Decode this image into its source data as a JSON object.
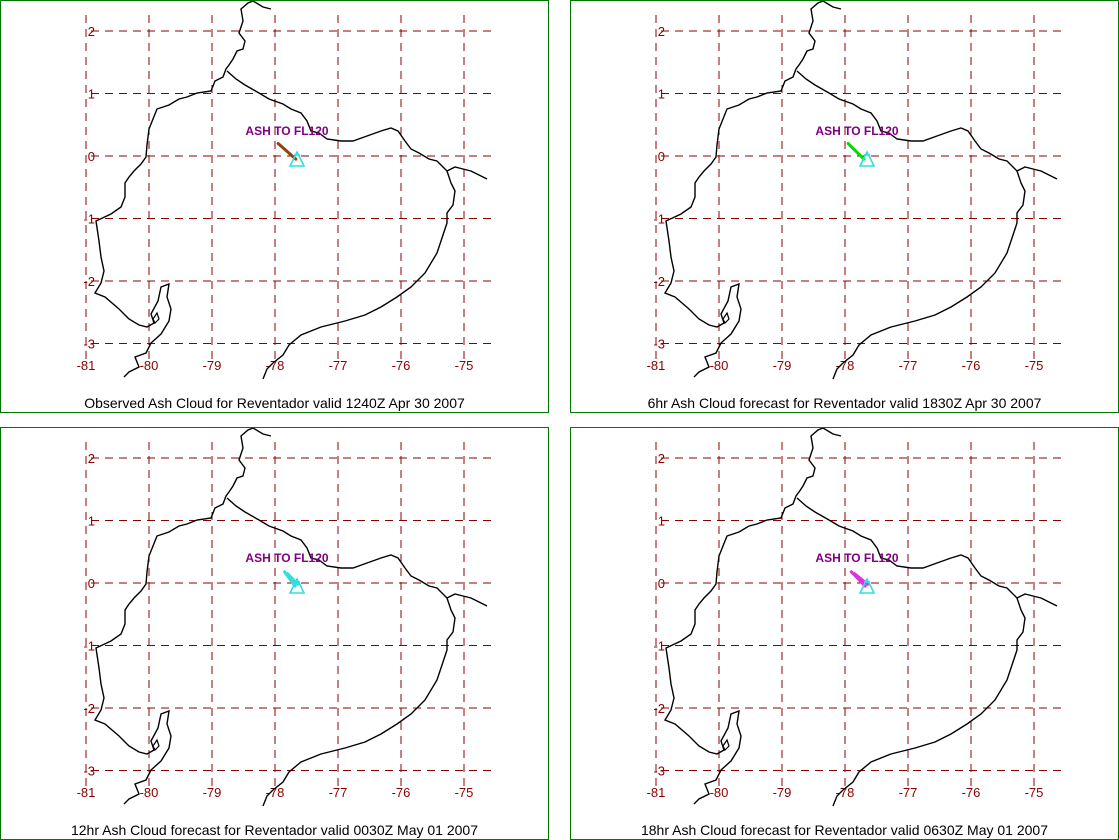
{
  "grid": {
    "lon_ticks": [
      -81,
      -80,
      -79,
      -78,
      -77,
      -76,
      -75
    ],
    "lat_ticks": [
      2,
      1,
      0,
      -1,
      -2,
      -3
    ]
  },
  "colors": {
    "border": "#007700",
    "grid": "#8b0000",
    "tick_label": "#8b0000",
    "coast": "#000000",
    "volcano": "#33dddd",
    "ash_label": "#800080"
  },
  "volcano": {
    "name": "Reventador",
    "icon": "volcano-triangle-icon",
    "lon": -77.65,
    "lat": -0.08
  },
  "panels": [
    {
      "id": "obs",
      "caption": "Observed Ash Cloud for Reventador valid 1240Z Apr 30 2007",
      "ash_label": "ASH TO FL120",
      "ash_color": "#8b4513",
      "ash_lines": [
        [
          [
            -77.95,
            0.2
          ],
          [
            -77.67,
            -0.05
          ]
        ]
      ]
    },
    {
      "id": "f06",
      "caption": "6hr Ash Cloud forecast for Reventador valid 1830Z Apr 30 2007",
      "ash_label": "ASH TO FL120",
      "ash_color": "#00dd00",
      "ash_lines": [
        [
          [
            -77.95,
            0.2
          ],
          [
            -77.7,
            -0.05
          ]
        ]
      ]
    },
    {
      "id": "f12",
      "caption": "12hr Ash Cloud forecast for Reventador valid 0030Z May 01 2007",
      "ash_label": "ASH TO FL120",
      "ash_color": "#33dddd",
      "ash_lines": [
        [
          [
            -77.85,
            0.18
          ],
          [
            -77.68,
            -0.05
          ]
        ],
        [
          [
            -77.8,
            0.15
          ],
          [
            -77.64,
            -0.02
          ]
        ]
      ]
    },
    {
      "id": "f18",
      "caption": "18hr Ash Cloud forecast for Reventador valid 0630Z May 01 2007",
      "ash_label": "ASH TO FL120",
      "ash_color": "#dd33dd",
      "ash_lines": [
        [
          [
            -77.9,
            0.18
          ],
          [
            -77.68,
            -0.05
          ]
        ],
        [
          [
            -77.85,
            0.15
          ],
          [
            -77.64,
            -0.02
          ]
        ]
      ]
    }
  ]
}
